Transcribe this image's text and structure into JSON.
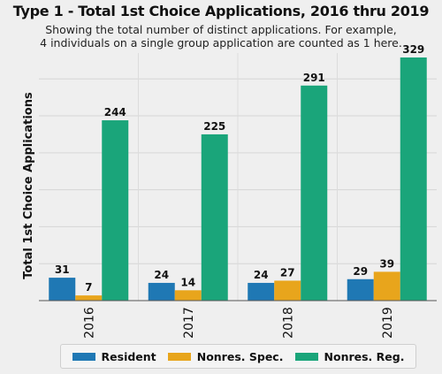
{
  "chart_data": {
    "type": "bar",
    "title": "Type 1 - Total 1st Choice Applications, 2016 thru 2019",
    "subtitle_lines": [
      "Showing the total number of distinct applications. For example,",
      "4 individuals on a single group application are counted as 1 here."
    ],
    "xlabel": "",
    "ylabel": "Total 1st Choice Applications",
    "categories": [
      "2016",
      "2017",
      "2018",
      "2019"
    ],
    "series": [
      {
        "name": "Resident",
        "color": "#1f78b4",
        "values": [
          31,
          24,
          24,
          29
        ]
      },
      {
        "name": "Nonres. Spec.",
        "color": "#e8a51c",
        "values": [
          7,
          14,
          27,
          39
        ]
      },
      {
        "name": "Nonres. Reg.",
        "color": "#1aa57a",
        "values": [
          244,
          225,
          291,
          329
        ]
      }
    ],
    "ylim": [
      0,
      335
    ],
    "grid": true,
    "legend_position": "bottom"
  }
}
